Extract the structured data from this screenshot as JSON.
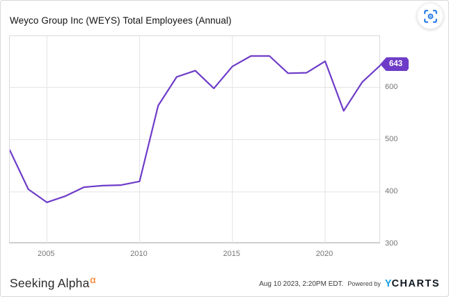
{
  "header": {
    "title": "Weyco Group Inc (WEYS) Total Employees (Annual)"
  },
  "icons": {
    "focus_button": "focus-icon",
    "focus_color": "#1a73e8"
  },
  "chart_data": {
    "type": "line",
    "title": "Weyco Group Inc (WEYS) Total Employees (Annual)",
    "series": [
      {
        "name": "Total Employees (Annual)",
        "color": "#6d3bc8",
        "x": [
          2003,
          2004,
          2005,
          2006,
          2007,
          2008,
          2009,
          2010,
          2011,
          2012,
          2013,
          2014,
          2015,
          2016,
          2017,
          2018,
          2019,
          2020,
          2021,
          2022,
          2023
        ],
        "values": [
          480,
          405,
          380,
          392,
          409,
          412,
          413,
          420,
          565,
          620,
          632,
          598,
          640,
          660,
          660,
          627,
          628,
          650,
          555,
          610,
          643
        ]
      }
    ],
    "x_ticks": [
      2005,
      2010,
      2015,
      2020
    ],
    "x_tick_labels": [
      "2005",
      "2010",
      "2015",
      "2020"
    ],
    "y_ticks": [
      300,
      400,
      500,
      600
    ],
    "y_tick_labels": [
      "300",
      "400",
      "500",
      "600"
    ],
    "xlim": [
      2003,
      2023
    ],
    "ylim": [
      300,
      698
    ],
    "grid": true,
    "legend_position": "none",
    "last_value_label": "643",
    "grid_color": "#e3e3e3",
    "tick_color": "#757575"
  },
  "footer": {
    "brand": "Seeking Alpha",
    "brand_alpha": "α",
    "timestamp": "Aug 10 2023, 2:20PM EDT.",
    "powered_by": "Powered by",
    "ycharts_y": "Y",
    "ycharts_rest": "CHARTS"
  },
  "colors": {
    "accent_purple": "#6d3bc8",
    "alpha_orange": "#ff6600",
    "ycharts_blue": "#149fe6",
    "focus_blue": "#1a73e8"
  }
}
